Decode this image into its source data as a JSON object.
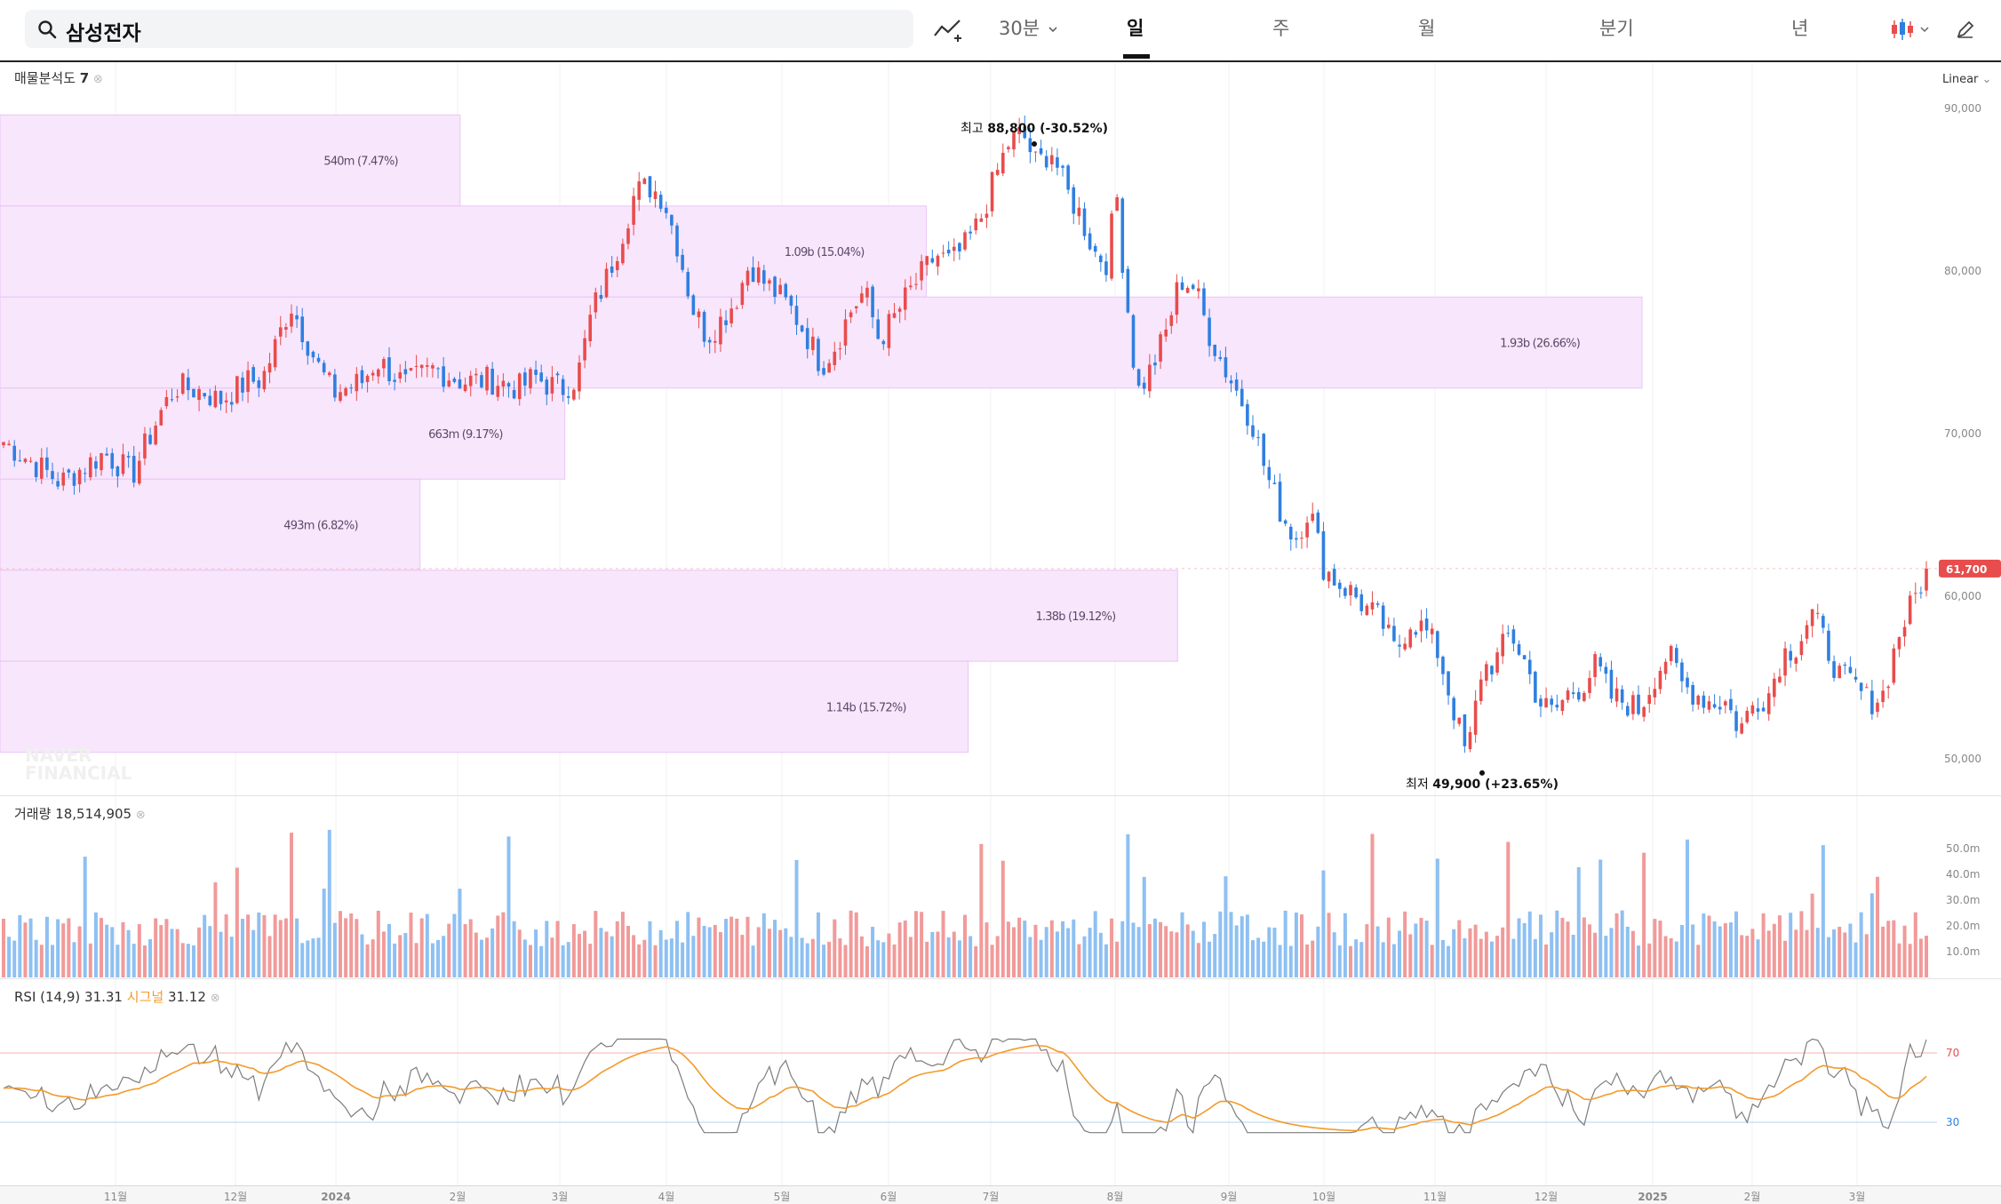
{
  "search": {
    "value": "삼성전자"
  },
  "toolbar": {
    "interval": "30분",
    "tabs": [
      "일",
      "주",
      "월",
      "분기",
      "년"
    ],
    "active_tab": "일"
  },
  "panels": {
    "volume_profile": {
      "label": "매물분석도",
      "count": "7"
    },
    "volume": {
      "label": "거래량",
      "value": "18,514,905"
    },
    "rsi": {
      "label": "RSI (14,9)",
      "value": "31.31",
      "signal_label": "시그널",
      "signal_value": "31.12"
    }
  },
  "scale_label": "Linear",
  "watermark": [
    "NAVER",
    "FINANCIAL"
  ],
  "colors": {
    "up": "#e84c4c",
    "down": "#2f7fe0",
    "profile": "#f8e6fc",
    "profile_border": "#e9c6f5",
    "rsi_line": "#7d7d7d",
    "signal_line": "#f39a2b"
  },
  "chart_data": {
    "type": "candlestick",
    "x_ticks": [
      "11월",
      "12월",
      "2024",
      "2월",
      "3월",
      "4월",
      "5월",
      "6월",
      "7월",
      "8월",
      "9월",
      "10월",
      "11월",
      "12월",
      "2025",
      "2월",
      "3월"
    ],
    "price_axis": {
      "min": 50000,
      "max": 90000,
      "ticks": [
        "90,000",
        "80,000",
        "70,000",
        "60,000",
        "50,000"
      ]
    },
    "last_price": "61,700",
    "high": {
      "label": "최고",
      "value": "88,800",
      "change": "(-30.52%)"
    },
    "low": {
      "label": "최저",
      "value": "49,900",
      "change": "(+23.65%)"
    },
    "price_path": [
      [
        0,
        69500
      ],
      [
        4,
        67000
      ],
      [
        7,
        68800
      ],
      [
        9,
        67500
      ],
      [
        10,
        69500
      ],
      [
        11,
        71400
      ],
      [
        12,
        72900
      ],
      [
        14,
        72600
      ],
      [
        15,
        72000
      ],
      [
        17,
        73200
      ],
      [
        18,
        73300
      ],
      [
        19,
        75500
      ],
      [
        20,
        78000
      ],
      [
        21,
        76000
      ],
      [
        22,
        74000
      ],
      [
        23,
        72500
      ],
      [
        25,
        73200
      ],
      [
        26,
        74500
      ],
      [
        27,
        73800
      ],
      [
        28,
        73000
      ],
      [
        30,
        74000
      ],
      [
        32,
        73200
      ],
      [
        34,
        73300
      ],
      [
        36,
        72800
      ],
      [
        37,
        73500
      ],
      [
        38,
        73000
      ],
      [
        39,
        72800
      ],
      [
        40,
        73500
      ],
      [
        41,
        77500
      ],
      [
        42,
        79500
      ],
      [
        43,
        82000
      ],
      [
        44,
        84800
      ],
      [
        45,
        85200
      ],
      [
        46,
        84500
      ],
      [
        47,
        81500
      ],
      [
        48,
        77800
      ],
      [
        49,
        76000
      ],
      [
        50,
        77000
      ],
      [
        51,
        78200
      ],
      [
        52,
        80500
      ],
      [
        53,
        79300
      ],
      [
        54,
        78500
      ],
      [
        55,
        77500
      ],
      [
        56,
        76000
      ],
      [
        57,
        74200
      ],
      [
        58,
        75500
      ],
      [
        59,
        77500
      ],
      [
        60,
        78800
      ],
      [
        61,
        75800
      ],
      [
        62,
        77000
      ],
      [
        63,
        78500
      ],
      [
        64,
        79800
      ],
      [
        65,
        81000
      ],
      [
        66,
        80500
      ],
      [
        67,
        81500
      ],
      [
        68,
        83000
      ],
      [
        69,
        85500
      ],
      [
        70,
        87800
      ],
      [
        71,
        88500
      ],
      [
        72,
        86500
      ],
      [
        73,
        87500
      ],
      [
        74,
        85000
      ],
      [
        75,
        83500
      ],
      [
        76,
        81200
      ],
      [
        77,
        80500
      ],
      [
        77.5,
        85500
      ],
      [
        78,
        80500
      ],
      [
        79,
        72500
      ],
      [
        80,
        74000
      ],
      [
        81,
        76200
      ],
      [
        82,
        79500
      ],
      [
        83,
        79000
      ],
      [
        84,
        76200
      ],
      [
        85,
        74200
      ],
      [
        86,
        72500
      ],
      [
        87,
        70800
      ],
      [
        88,
        67500
      ],
      [
        89,
        65200
      ],
      [
        90,
        63500
      ],
      [
        91,
        65500
      ],
      [
        92,
        61800
      ],
      [
        93,
        60800
      ],
      [
        94,
        60200
      ],
      [
        95,
        59200
      ],
      [
        96,
        58500
      ],
      [
        97,
        56500
      ],
      [
        98,
        58500
      ],
      [
        99,
        58000
      ],
      [
        100,
        56500
      ],
      [
        101,
        53200
      ],
      [
        102,
        50000
      ],
      [
        103,
        55500
      ],
      [
        104,
        56000
      ],
      [
        105,
        57800
      ],
      [
        106,
        56000
      ],
      [
        107,
        53500
      ],
      [
        108,
        52800
      ],
      [
        109,
        54000
      ],
      [
        110,
        54500
      ],
      [
        111,
        55800
      ],
      [
        112,
        53800
      ],
      [
        113,
        53500
      ],
      [
        114,
        53000
      ],
      [
        115,
        55000
      ],
      [
        116,
        56500
      ],
      [
        117,
        54500
      ],
      [
        118,
        54000
      ],
      [
        119,
        53500
      ],
      [
        120,
        53500
      ],
      [
        121,
        51800
      ],
      [
        122,
        53500
      ],
      [
        123,
        54000
      ],
      [
        124,
        56500
      ],
      [
        125,
        57000
      ],
      [
        126,
        59000
      ],
      [
        127,
        57000
      ],
      [
        128,
        55000
      ],
      [
        129,
        54500
      ],
      [
        130,
        53500
      ],
      [
        131,
        54000
      ],
      [
        132,
        57500
      ],
      [
        133,
        59500
      ],
      [
        134,
        61700
      ]
    ],
    "volume_axis": {
      "ticks": [
        "50.0m",
        "40.0m",
        "30.0m",
        "20.0m",
        "10.0m"
      ]
    },
    "volume_profile": [
      {
        "price_from": 84000,
        "price_to": 89600,
        "label": "540m (7.47%)",
        "pct": 7.47
      },
      {
        "price_from": 78400,
        "price_to": 84000,
        "label": "1.09b (15.04%)",
        "pct": 15.04
      },
      {
        "price_from": 72800,
        "price_to": 78400,
        "label": "1.93b (26.66%)",
        "pct": 26.66
      },
      {
        "price_from": 67200,
        "price_to": 72800,
        "label": "663m (9.17%)",
        "pct": 9.17
      },
      {
        "price_from": 61600,
        "price_to": 67200,
        "label": "493m (6.82%)",
        "pct": 6.82
      },
      {
        "price_from": 56000,
        "price_to": 61600,
        "label": "1.38b (19.12%)",
        "pct": 19.12
      },
      {
        "price_from": 50400,
        "price_to": 56000,
        "label": "1.14b (15.72%)",
        "pct": 15.72
      }
    ],
    "rsi_levels": [
      "70",
      "30"
    ]
  }
}
